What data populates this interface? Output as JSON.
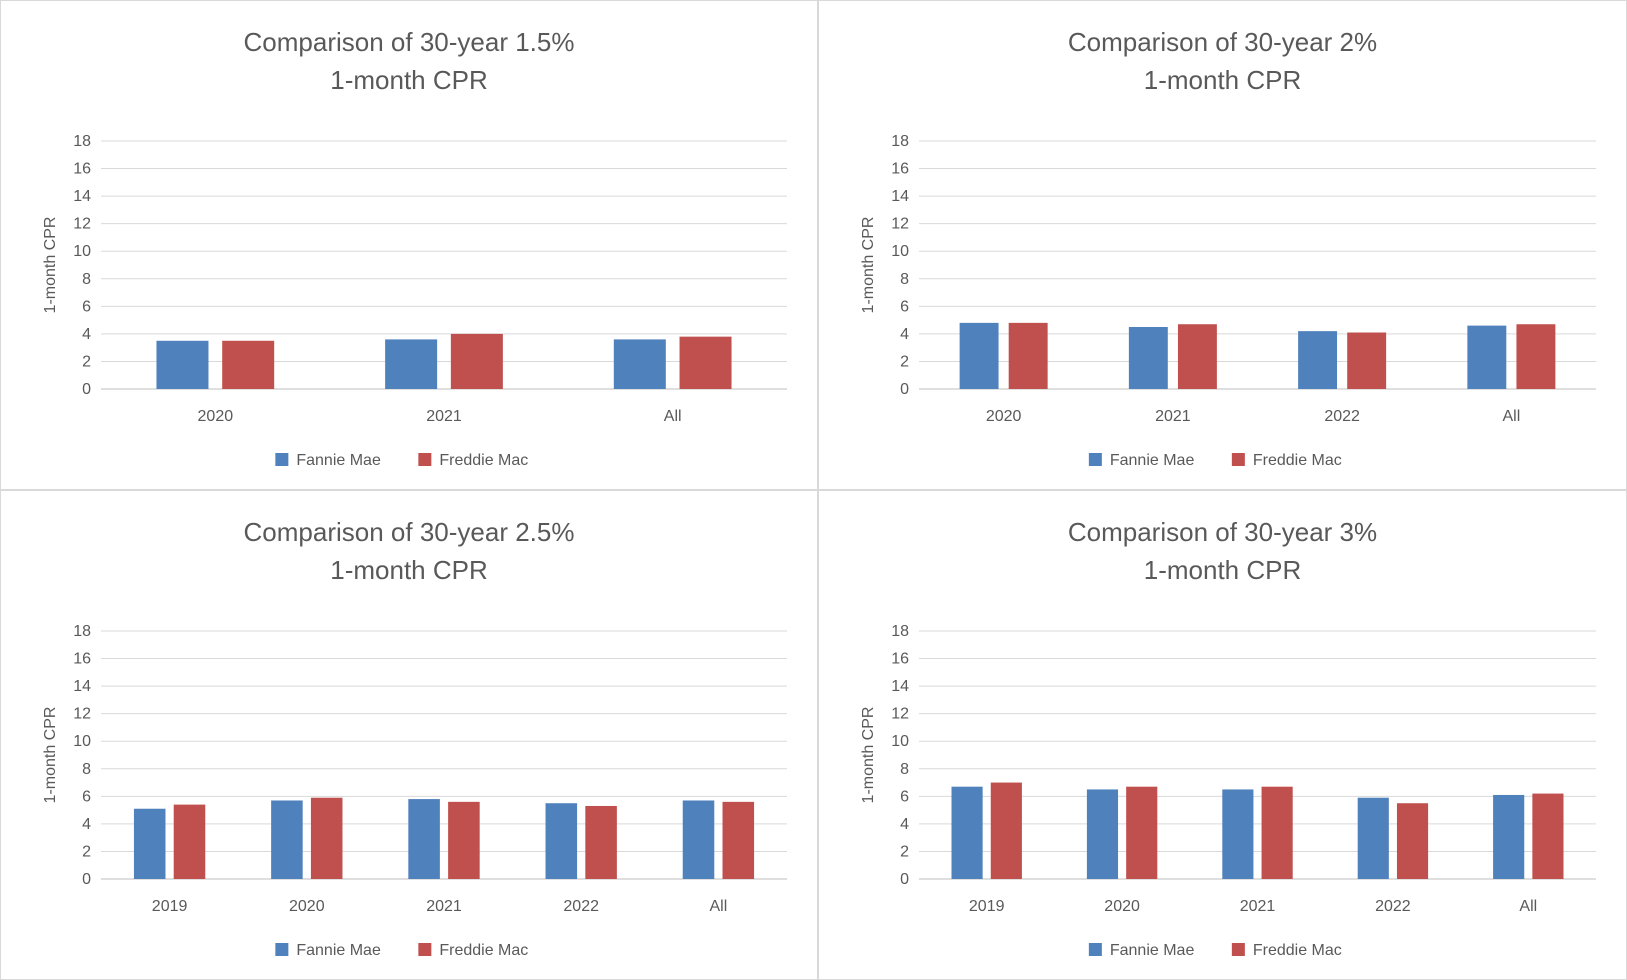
{
  "chart_data": [
    {
      "type": "bar",
      "title": [
        "Comparison of 30-year 1.5%",
        "1-month CPR"
      ],
      "ylabel": "1-month CPR",
      "xlabel": "",
      "ylim": [
        0,
        18
      ],
      "yticks": [
        0,
        2,
        4,
        6,
        8,
        10,
        12,
        14,
        16,
        18
      ],
      "grid": true,
      "legend": "bottom",
      "categories": [
        "2020",
        "2021",
        "All"
      ],
      "series": [
        {
          "name": "Fannie Mae",
          "color": "#4f81bd",
          "values": [
            3.5,
            3.6,
            3.6
          ]
        },
        {
          "name": "Freddie Mac",
          "color": "#c0504d",
          "values": [
            3.5,
            4.0,
            3.8
          ]
        }
      ]
    },
    {
      "type": "bar",
      "title": [
        "Comparison of 30-year 2%",
        "1-month CPR"
      ],
      "ylabel": "1-month CPR",
      "xlabel": "",
      "ylim": [
        0,
        18
      ],
      "yticks": [
        0,
        2,
        4,
        6,
        8,
        10,
        12,
        14,
        16,
        18
      ],
      "grid": true,
      "legend": "bottom",
      "categories": [
        "2020",
        "2021",
        "2022",
        "All"
      ],
      "series": [
        {
          "name": "Fannie Mae",
          "color": "#4f81bd",
          "values": [
            4.8,
            4.5,
            4.2,
            4.6
          ]
        },
        {
          "name": "Freddie Mac",
          "color": "#c0504d",
          "values": [
            4.8,
            4.7,
            4.1,
            4.7
          ]
        }
      ]
    },
    {
      "type": "bar",
      "title": [
        "Comparison of 30-year 2.5%",
        "1-month CPR"
      ],
      "ylabel": "1-month CPR",
      "xlabel": "",
      "ylim": [
        0,
        18
      ],
      "yticks": [
        0,
        2,
        4,
        6,
        8,
        10,
        12,
        14,
        16,
        18
      ],
      "grid": true,
      "legend": "bottom",
      "categories": [
        "2019",
        "2020",
        "2021",
        "2022",
        "All"
      ],
      "series": [
        {
          "name": "Fannie Mae",
          "color": "#4f81bd",
          "values": [
            5.1,
            5.7,
            5.8,
            5.5,
            5.7
          ]
        },
        {
          "name": "Freddie Mac",
          "color": "#c0504d",
          "values": [
            5.4,
            5.9,
            5.6,
            5.3,
            5.6
          ]
        }
      ]
    },
    {
      "type": "bar",
      "title": [
        "Comparison of 30-year 3%",
        "1-month CPR"
      ],
      "ylabel": "1-month CPR",
      "xlabel": "",
      "ylim": [
        0,
        18
      ],
      "yticks": [
        0,
        2,
        4,
        6,
        8,
        10,
        12,
        14,
        16,
        18
      ],
      "grid": true,
      "legend": "bottom",
      "categories": [
        "2019",
        "2020",
        "2021",
        "2022",
        "All"
      ],
      "series": [
        {
          "name": "Fannie Mae",
          "color": "#4f81bd",
          "values": [
            6.7,
            6.5,
            6.5,
            5.9,
            6.1
          ]
        },
        {
          "name": "Freddie Mac",
          "color": "#c0504d",
          "values": [
            7.0,
            6.7,
            6.7,
            5.5,
            6.2
          ]
        }
      ]
    }
  ]
}
